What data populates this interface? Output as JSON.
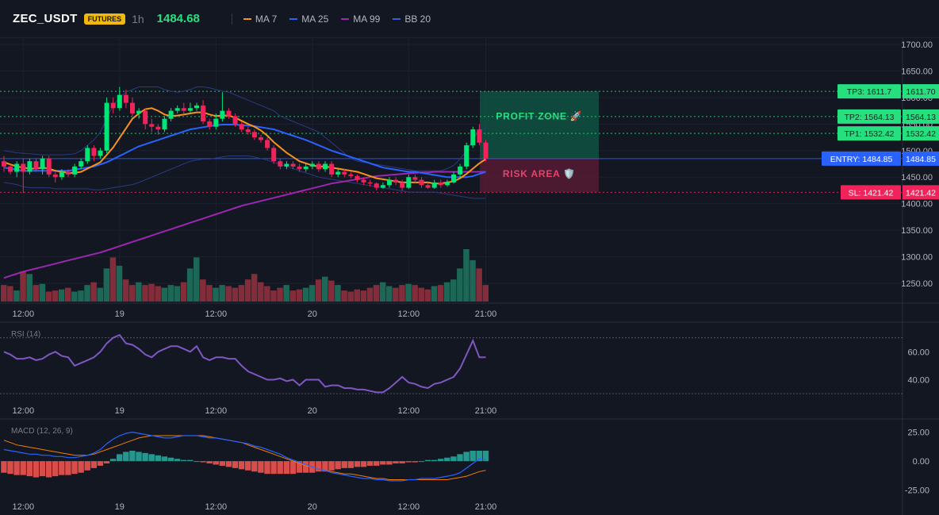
{
  "header": {
    "symbol": "ZEC_USDT",
    "badge": "FUTURES",
    "timeframe": "1h",
    "price": "1484.68",
    "legend": [
      {
        "label": "MA 7",
        "color": "#f7931a"
      },
      {
        "label": "MA 25",
        "color": "#2962ff"
      },
      {
        "label": "MA 99",
        "color": "#9c27b0"
      },
      {
        "label": "BB 20",
        "color": "#3b5bdb"
      }
    ]
  },
  "chart_data": [
    {
      "type": "candlestick",
      "title": "ZEC_USDT",
      "ylim": [
        1200,
        1710
      ],
      "yticks": [
        1250,
        1300,
        1350,
        1400,
        1450,
        1500,
        1550,
        1600,
        1650,
        1700
      ],
      "ytick_labels": [
        "1250.00",
        "1300.00",
        "1350.00",
        "1400.00",
        "1450.00",
        "1500.00",
        "1550.00",
        "1600.00",
        "1650.00",
        "1700.00"
      ],
      "x_index_range": [
        0,
        74
      ],
      "xticks": [
        {
          "index": 3,
          "label": "12:00"
        },
        {
          "index": 18,
          "label": "19"
        },
        {
          "index": 33,
          "label": "12:00"
        },
        {
          "index": 48,
          "label": "20"
        },
        {
          "index": 63,
          "label": "12:00"
        },
        {
          "index": 75,
          "label": "21:00"
        }
      ],
      "candles": [
        [
          1480,
          1470,
          1490,
          1460
        ],
        [
          1470,
          1460,
          1475,
          1455
        ],
        [
          1460,
          1475,
          1480,
          1450
        ],
        [
          1475,
          1460,
          1485,
          1420
        ],
        [
          1460,
          1480,
          1485,
          1455
        ],
        [
          1480,
          1465,
          1485,
          1460
        ],
        [
          1465,
          1485,
          1490,
          1455
        ],
        [
          1485,
          1455,
          1490,
          1450
        ],
        [
          1455,
          1450,
          1460,
          1440
        ],
        [
          1450,
          1460,
          1465,
          1445
        ],
        [
          1460,
          1455,
          1465,
          1450
        ],
        [
          1455,
          1470,
          1475,
          1450
        ],
        [
          1470,
          1480,
          1485,
          1465
        ],
        [
          1480,
          1505,
          1510,
          1475
        ],
        [
          1505,
          1490,
          1510,
          1480
        ],
        [
          1490,
          1500,
          1505,
          1485
        ],
        [
          1500,
          1590,
          1600,
          1495
        ],
        [
          1590,
          1580,
          1600,
          1570
        ],
        [
          1580,
          1605,
          1620,
          1575
        ],
        [
          1605,
          1590,
          1615,
          1580
        ],
        [
          1590,
          1570,
          1600,
          1565
        ],
        [
          1570,
          1575,
          1580,
          1560
        ],
        [
          1575,
          1550,
          1580,
          1540
        ],
        [
          1550,
          1545,
          1560,
          1535
        ],
        [
          1545,
          1540,
          1550,
          1530
        ],
        [
          1540,
          1560,
          1565,
          1535
        ],
        [
          1560,
          1575,
          1580,
          1555
        ],
        [
          1575,
          1580,
          1585,
          1570
        ],
        [
          1580,
          1575,
          1590,
          1570
        ],
        [
          1575,
          1580,
          1590,
          1570
        ],
        [
          1580,
          1585,
          1590,
          1575
        ],
        [
          1585,
          1555,
          1595,
          1550
        ],
        [
          1555,
          1545,
          1560,
          1540
        ],
        [
          1545,
          1560,
          1570,
          1540
        ],
        [
          1560,
          1575,
          1610,
          1555
        ],
        [
          1575,
          1565,
          1580,
          1560
        ],
        [
          1565,
          1550,
          1570,
          1545
        ],
        [
          1550,
          1540,
          1555,
          1535
        ],
        [
          1540,
          1535,
          1545,
          1530
        ],
        [
          1535,
          1525,
          1540,
          1520
        ],
        [
          1525,
          1520,
          1530,
          1515
        ],
        [
          1520,
          1505,
          1525,
          1500
        ],
        [
          1505,
          1480,
          1510,
          1475
        ],
        [
          1480,
          1470,
          1485,
          1465
        ],
        [
          1470,
          1475,
          1480,
          1465
        ],
        [
          1475,
          1470,
          1480,
          1465
        ],
        [
          1470,
          1465,
          1475,
          1460
        ],
        [
          1465,
          1470,
          1475,
          1460
        ],
        [
          1470,
          1475,
          1480,
          1465
        ],
        [
          1475,
          1465,
          1480,
          1460
        ],
        [
          1465,
          1475,
          1480,
          1460
        ],
        [
          1475,
          1455,
          1480,
          1450
        ],
        [
          1455,
          1460,
          1465,
          1450
        ],
        [
          1460,
          1455,
          1465,
          1450
        ],
        [
          1455,
          1452,
          1460,
          1448
        ],
        [
          1452,
          1445,
          1455,
          1440
        ],
        [
          1445,
          1440,
          1450,
          1435
        ],
        [
          1440,
          1438,
          1445,
          1432
        ],
        [
          1438,
          1430,
          1440,
          1425
        ],
        [
          1430,
          1435,
          1440,
          1428
        ],
        [
          1435,
          1445,
          1450,
          1430
        ],
        [
          1445,
          1440,
          1450,
          1435
        ],
        [
          1440,
          1430,
          1445,
          1425
        ],
        [
          1430,
          1450,
          1455,
          1428
        ],
        [
          1450,
          1445,
          1455,
          1440
        ],
        [
          1445,
          1435,
          1450,
          1430
        ],
        [
          1435,
          1430,
          1440,
          1428
        ],
        [
          1430,
          1440,
          1445,
          1428
        ],
        [
          1440,
          1435,
          1445,
          1430
        ],
        [
          1435,
          1440,
          1445,
          1432
        ],
        [
          1440,
          1455,
          1460,
          1438
        ],
        [
          1455,
          1470,
          1475,
          1450
        ],
        [
          1470,
          1510,
          1515,
          1465
        ],
        [
          1510,
          1540,
          1545,
          1505
        ],
        [
          1540,
          1515,
          1550,
          1510
        ],
        [
          1515,
          1485,
          1520,
          1480
        ]
      ],
      "ma7": [
        1478,
        1474,
        1470,
        1468,
        1466,
        1466,
        1468,
        1466,
        1462,
        1460,
        1458,
        1458,
        1460,
        1466,
        1472,
        1478,
        1492,
        1506,
        1524,
        1542,
        1560,
        1570,
        1578,
        1580,
        1575,
        1568,
        1565,
        1566,
        1568,
        1570,
        1572,
        1572,
        1568,
        1565,
        1566,
        1566,
        1562,
        1556,
        1550,
        1545,
        1538,
        1528,
        1516,
        1506,
        1496,
        1488,
        1480,
        1476,
        1472,
        1470,
        1470,
        1468,
        1466,
        1464,
        1462,
        1460,
        1456,
        1452,
        1448,
        1446,
        1444,
        1442,
        1440,
        1440,
        1440,
        1440,
        1440,
        1438,
        1438,
        1440,
        1442,
        1448,
        1456,
        1466,
        1476,
        1484
      ],
      "ma25": [
        1468,
        1466,
        1464,
        1462,
        1462,
        1462,
        1462,
        1462,
        1462,
        1462,
        1462,
        1464,
        1466,
        1468,
        1470,
        1474,
        1478,
        1484,
        1490,
        1496,
        1502,
        1508,
        1512,
        1516,
        1520,
        1524,
        1528,
        1532,
        1536,
        1540,
        1542,
        1544,
        1546,
        1548,
        1549,
        1549,
        1549,
        1548,
        1547,
        1546,
        1544,
        1542,
        1540,
        1536,
        1532,
        1528,
        1524,
        1520,
        1515,
        1510,
        1505,
        1500,
        1496,
        1492,
        1488,
        1484,
        1480,
        1476,
        1472,
        1468,
        1466,
        1464,
        1462,
        1460,
        1460,
        1458,
        1456,
        1454,
        1452,
        1450,
        1450,
        1450,
        1450,
        1452,
        1456,
        1460
      ],
      "ma99": [
        1260,
        1264,
        1268,
        1272,
        1275,
        1278,
        1281,
        1284,
        1287,
        1290,
        1293,
        1296,
        1299,
        1302,
        1305,
        1308,
        1312,
        1316,
        1320,
        1324,
        1328,
        1332,
        1336,
        1340,
        1344,
        1348,
        1352,
        1356,
        1360,
        1364,
        1368,
        1372,
        1376,
        1380,
        1384,
        1388,
        1392,
        1396,
        1399,
        1402,
        1405,
        1408,
        1411,
        1414,
        1417,
        1420,
        1423,
        1426,
        1429,
        1432,
        1435,
        1438,
        1440,
        1442,
        1444,
        1446,
        1448,
        1450,
        1452,
        1453,
        1454,
        1455,
        1456,
        1457,
        1458,
        1459,
        1459,
        1460,
        1460,
        1460,
        1460,
        1460,
        1460,
        1460,
        1460,
        1460
      ],
      "bb_upper": [
        1500,
        1498,
        1496,
        1495,
        1494,
        1493,
        1492,
        1492,
        1492,
        1492,
        1493,
        1494,
        1500,
        1510,
        1520,
        1535,
        1560,
        1585,
        1600,
        1610,
        1615,
        1620,
        1620,
        1620,
        1620,
        1615,
        1612,
        1610,
        1612,
        1615,
        1620,
        1620,
        1618,
        1615,
        1612,
        1610,
        1605,
        1600,
        1595,
        1590,
        1585,
        1580,
        1575,
        1565,
        1560,
        1555,
        1550,
        1545,
        1540,
        1535,
        1525,
        1515,
        1505,
        1495,
        1485,
        1480,
        1478,
        1476,
        1474,
        1472,
        1470,
        1468,
        1466,
        1464,
        1462,
        1462,
        1462,
        1462,
        1462,
        1466,
        1472,
        1484,
        1500,
        1520,
        1540,
        1540
      ],
      "bb_lower": [
        1440,
        1438,
        1436,
        1432,
        1430,
        1430,
        1430,
        1430,
        1428,
        1428,
        1428,
        1428,
        1428,
        1428,
        1426,
        1426,
        1428,
        1430,
        1432,
        1434,
        1436,
        1440,
        1445,
        1450,
        1455,
        1460,
        1465,
        1470,
        1475,
        1480,
        1482,
        1484,
        1484,
        1486,
        1488,
        1490,
        1490,
        1490,
        1490,
        1488,
        1485,
        1482,
        1478,
        1474,
        1470,
        1466,
        1462,
        1458,
        1454,
        1450,
        1448,
        1446,
        1444,
        1442,
        1440,
        1438,
        1436,
        1434,
        1432,
        1430,
        1428,
        1426,
        1424,
        1422,
        1422,
        1422,
        1422,
        1422,
        1420,
        1418,
        1416,
        1414,
        1412,
        1410,
        1410,
        1410
      ],
      "volume": [
        30,
        28,
        20,
        55,
        50,
        30,
        32,
        18,
        20,
        22,
        25,
        18,
        20,
        30,
        35,
        25,
        60,
        80,
        65,
        40,
        30,
        35,
        30,
        32,
        28,
        25,
        30,
        28,
        35,
        60,
        80,
        40,
        30,
        25,
        30,
        28,
        25,
        30,
        40,
        50,
        35,
        28,
        20,
        25,
        30,
        20,
        22,
        25,
        30,
        40,
        45,
        38,
        30,
        20,
        18,
        22,
        20,
        25,
        30,
        35,
        28,
        25,
        30,
        32,
        30,
        25,
        22,
        28,
        30,
        35,
        40,
        60,
        95,
        75,
        60,
        30
      ],
      "tp3": {
        "value": 1611.7,
        "label": "TP3: 1611.7",
        "axis": "1611.70"
      },
      "tp2": {
        "value": 1564.13,
        "label": "TP2: 1564.13",
        "axis": "1564.13"
      },
      "tp1": {
        "value": 1532.42,
        "label": "TP1: 1532.42",
        "axis": "1532.42"
      },
      "entry": {
        "value": 1484.85,
        "label": "ENTRY: 1484.85",
        "axis": "1484.85"
      },
      "sl": {
        "value": 1421.42,
        "label": "SL: 1421.42",
        "axis": "1421.42"
      },
      "zones": {
        "profit_label": "PROFIT ZONE 🚀",
        "risk_label": "RISK AREA 🛡️"
      }
    },
    {
      "type": "line",
      "title": "RSI (14)",
      "ylim": [
        25,
        80
      ],
      "yticks": [
        40,
        60
      ],
      "ytick_labels": [
        "40.00",
        "60.00"
      ],
      "levels": [
        70,
        30
      ],
      "values": [
        60,
        58,
        55,
        55,
        56,
        54,
        55,
        58,
        60,
        57,
        56,
        50,
        52,
        54,
        56,
        60,
        66,
        70,
        72,
        66,
        65,
        62,
        58,
        56,
        60,
        62,
        64,
        64,
        62,
        60,
        64,
        56,
        54,
        56,
        56,
        55,
        55,
        50,
        46,
        44,
        42,
        40,
        40,
        41,
        39,
        40,
        36,
        40,
        40,
        40,
        35,
        36,
        36,
        34,
        34,
        33,
        33,
        32,
        31,
        31,
        34,
        38,
        42,
        38,
        37,
        35,
        34,
        37,
        38,
        40,
        42,
        48,
        58,
        68,
        56,
        56
      ]
    },
    {
      "type": "bar-line",
      "title": "MACD (12, 26, 9)",
      "ylim": [
        -28,
        35
      ],
      "yticks": [
        -25,
        0,
        25
      ],
      "ytick_labels": [
        "-25.00",
        "0.00",
        "25.00"
      ],
      "macd": [
        10,
        9,
        8,
        7,
        6,
        6,
        5,
        5,
        4,
        4,
        3,
        3,
        4,
        5,
        7,
        10,
        15,
        19,
        22,
        24,
        25,
        24,
        23,
        22,
        21,
        20,
        20,
        21,
        22,
        22,
        22,
        21,
        20,
        20,
        19,
        18,
        17,
        16,
        15,
        13,
        12,
        10,
        8,
        6,
        3,
        1,
        -1,
        -3,
        -5,
        -7,
        -8,
        -10,
        -11,
        -12,
        -13,
        -14,
        -15,
        -15,
        -16,
        -16,
        -17,
        -17,
        -17,
        -16,
        -16,
        -15,
        -15,
        -15,
        -14,
        -13,
        -12,
        -10,
        -6,
        -2,
        2,
        1
      ],
      "signal": [
        18,
        16,
        14,
        13,
        12,
        11,
        10,
        9,
        8,
        7,
        6,
        5,
        5,
        5,
        6,
        8,
        10,
        12,
        14,
        16,
        18,
        20,
        21,
        22,
        22,
        22,
        22,
        22,
        22,
        22,
        22,
        22,
        21,
        20,
        19,
        18,
        17,
        16,
        14,
        12,
        10,
        8,
        6,
        4,
        2,
        0,
        -2,
        -4,
        -5,
        -7,
        -8,
        -9,
        -10,
        -11,
        -11,
        -12,
        -13,
        -14,
        -15,
        -15,
        -16,
        -16,
        -16,
        -16,
        -16,
        -16,
        -16,
        -16,
        -16,
        -16,
        -15,
        -14,
        -13,
        -11,
        -9,
        -8
      ],
      "histogram": [
        -10,
        -11,
        -12,
        -12,
        -13,
        -14,
        -13,
        -14,
        -13,
        -12,
        -12,
        -11,
        -10,
        -8,
        -6,
        -4,
        -2,
        2,
        6,
        8,
        9,
        8,
        7,
        6,
        5,
        4,
        3,
        2,
        1,
        1,
        0,
        -1,
        -2,
        -3,
        -4,
        -5,
        -6,
        -7,
        -8,
        -9,
        -10,
        -11,
        -11,
        -11,
        -11,
        -11,
        -10,
        -10,
        -10,
        -9,
        -9,
        -8,
        -7,
        -6,
        -6,
        -5,
        -5,
        -4,
        -4,
        -3,
        -3,
        -2,
        -2,
        -1,
        -1,
        0,
        1,
        1,
        2,
        3,
        4,
        6,
        8,
        9,
        9,
        9
      ]
    }
  ]
}
